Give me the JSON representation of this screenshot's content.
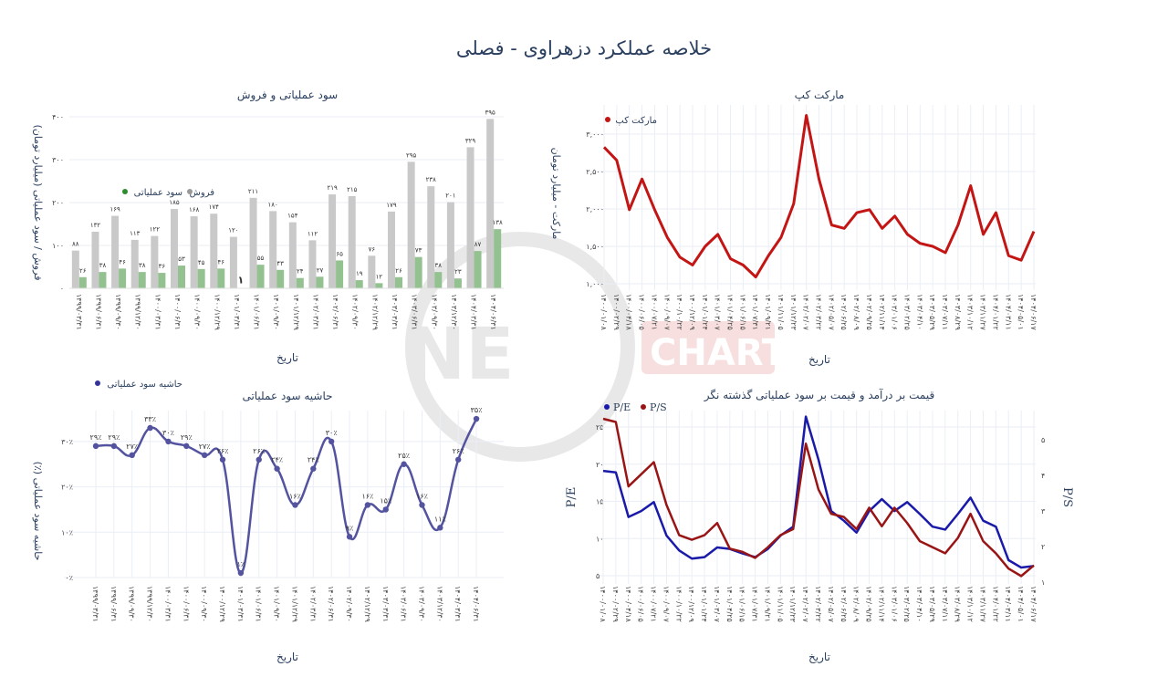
{
  "title": "خلاصه عملکرد دزهراوی - فصلی",
  "watermark": {
    "left": "NE",
    "right": "CHART.ir"
  },
  "colors": {
    "sales": "#c9c9c9",
    "op_profit": "#93c190",
    "margin": "#5353a0",
    "market_cap": "#c41515",
    "pe": "#1a1aaa",
    "ps": "#991515",
    "grid": "#eaeef6",
    "text": "#2a3f5f"
  },
  "chart_data": [
    {
      "type": "bar",
      "title": "سود عملیاتی و فروش",
      "xlabel": "تاریخ",
      "ylabel": "فروش / سود عملیاتی (میلیارد تومان)",
      "ylim": [
        0,
        400
      ],
      "yticks": [
        0,
        100,
        200,
        300,
        400
      ],
      "legend": "inside-left",
      "categories": [
        "۱۳۹۹/۰۳/۳۱",
        "۱۳۹۹/۰۶/۳۱",
        "۱۳۹۹/۰۹/۳۰",
        "۱۳۹۹/۱۲/۳۰",
        "۱۴۰۰/۰۳/۳۱",
        "۱۴۰۰/۰۶/۳۱",
        "۱۴۰۰/۰۹/۳۰",
        "۱۴۰۰/۱۲/۲۹",
        "۱۴۰۱/۰۳/۳۱",
        "۱۴۰۱/۰۶/۳۱",
        "۱۴۰۱/۰۹/۳۰",
        "۱۴۰۱/۱۲/۲۹",
        "۱۴۰۲/۰۳/۳۱",
        "۱۴۰۲/۰۶/۳۱",
        "۱۴۰۲/۰۹/۳۰",
        "۱۴۰۲/۱۲/۲۹",
        "۱۴۰۳/۰۳/۳۱",
        "۱۴۰۳/۰۶/۳۱",
        "۱۴۰۳/۰۹/۳۰",
        "۱۴۰۳/۱۲/۳۰",
        "۱۴۰۴/۰۳/۳۱",
        "۱۴۰۴/۰۶/۳۱"
      ],
      "series": [
        {
          "name": "فروش",
          "values": [
            88,
            132,
            169,
            113,
            122,
            185,
            168,
            174,
            120,
            211,
            180,
            154,
            112,
            219,
            215,
            76,
            179,
            295,
            238,
            201,
            329,
            395
          ]
        },
        {
          "name": "سود عملیاتی",
          "values": [
            26,
            38,
            46,
            38,
            36,
            53,
            45,
            46,
            1,
            55,
            43,
            24,
            27,
            65,
            19,
            12,
            26,
            73,
            38,
            23,
            87,
            138
          ]
        }
      ]
    },
    {
      "type": "line",
      "title": "حاشیه سود عملیاتی",
      "xlabel": "تاریخ",
      "ylabel": "(٪) حاشیه سود عملیاتی",
      "ylim": [
        0,
        35
      ],
      "yticks": [
        0,
        10,
        20,
        30
      ],
      "legend": "top-left",
      "categories": [
        "۱۳۹۹/۰۳/۳۱",
        "۱۳۹۹/۰۶/۳۱",
        "۱۳۹۹/۰۹/۳۰",
        "۱۳۹۹/۱۲/۳۰",
        "۱۴۰۰/۰۳/۳۱",
        "۱۴۰۰/۰۶/۳۱",
        "۱۴۰۰/۰۹/۳۰",
        "۱۴۰۰/۱۲/۲۹",
        "۱۴۰۱/۰۳/۳۱",
        "۱۴۰۱/۰۶/۳۱",
        "۱۴۰۱/۰۹/۳۰",
        "۱۴۰۱/۱۲/۲۹",
        "۱۴۰۲/۰۳/۳۱",
        "۱۴۰۲/۰۶/۳۱",
        "۱۴۰۲/۰۹/۳۰",
        "۱۴۰۲/۱۲/۲۹",
        "۱۴۰۳/۰۳/۳۱",
        "۱۴۰۳/۰۶/۳۱",
        "۱۴۰۳/۰۹/۳۰",
        "۱۴۰۳/۱۲/۳۰",
        "۱۴۰۴/۰۳/۳۱",
        "۱۴۰۴/۰۶/۳۱"
      ],
      "series": [
        {
          "name": "حاشیه سود عملیاتی",
          "values": [
            29,
            29,
            27,
            33,
            30,
            29,
            27,
            26,
            1,
            26,
            24,
            16,
            24,
            30,
            9,
            16,
            15,
            25,
            16,
            11,
            26,
            35
          ]
        }
      ]
    },
    {
      "type": "line",
      "title": "مارکت کپ",
      "xlabel": "تاریخ",
      "ylabel": "مارکت - میلیارد تومان",
      "ylim": [
        1000,
        3250
      ],
      "yticks": [
        1000,
        1500,
        2000,
        2500,
        3000
      ],
      "legend": "top-left",
      "x": [
        "۱۴۰۰/۰۱/۰۸",
        "۱۴۰۰/۰۲/۲۹",
        "۱۴۰۰/۰۴/۱۸",
        "۱۴۰۰/۰۶/۰۵",
        "۱۴۰۰/۰۷/۲۱",
        "۱۴۰۰/۰۹/۰۷",
        "۱۴۰۰/۱۰/۲۲",
        "۱۴۰۰/۱۲/۰۹",
        "۱۴۰۱/۰۱/۲۴",
        "۱۴۰۱/۰۳/۰۷",
        "۱۴۰۱/۰۴/۲۵",
        "۱۴۰۱/۰۶/۱۵",
        "۱۴۰۱/۰۷/۳۱",
        "۱۴۰۱/۰۹/۲۱",
        "۱۴۰۱/۱۱/۰۵",
        "۱۴۰۱/۱۲/۲۳",
        "۱۴۰۲/۰۲/۰۷",
        "۱۴۰۲/۰۳/۲۲",
        "۱۴۰۲/۰۵/۰۷",
        "۱۴۰۲/۰۶/۲۵",
        "۱۴۰۲/۰۸/۰۹",
        "۱۴۰۲/۰۹/۲۵",
        "۱۴۰۲/۱۱/۱۴",
        "۱۴۰۳/۰۱/۰۶",
        "۱۴۰۳/۰۲/۲۵",
        "۱۴۰۳/۰۴/۱۰",
        "۱۴۰۳/۰۵/۲۹",
        "۱۴۰۳/۰۷/۱۱",
        "۱۴۰۳/۰۸/۲۹",
        "۱۴۰۳/۱۰/۱۲",
        "۱۴۰۳/۱۱/۲۷",
        "۱۴۰۴/۰۱/۲۲",
        "۱۴۰۴/۰۳/۱۱",
        "۱۴۰۴/۰۵/۰۱",
        "۱۴۰۴/۰۶/۱۷"
      ],
      "series": [
        {
          "name": "مارکت کپ",
          "values": [
            2825,
            2650,
            1990,
            2400,
            1990,
            1620,
            1355,
            1250,
            1500,
            1660,
            1335,
            1250,
            1090,
            1375,
            1620,
            2070,
            3250,
            2400,
            1785,
            1740,
            1950,
            1990,
            1740,
            1905,
            1660,
            1540,
            1500,
            1415,
            1785,
            2310,
            1660,
            1950,
            1375,
            1315,
            1700
          ]
        }
      ]
    },
    {
      "type": "line",
      "title": "قیمت بر درآمد و قیمت بر سود عملیاتی گذشته نگر",
      "xlabel": "تاریخ",
      "ylabel": "P/E",
      "ylabel_right": "P/S",
      "ylim": [
        4,
        27
      ],
      "ylim_right": [
        0.9,
        5.7
      ],
      "yticks": [
        5,
        10,
        15,
        20,
        25
      ],
      "yticks_right": [
        1,
        2,
        3,
        4,
        5
      ],
      "legend": "top-left",
      "x": [
        "۱۴۰۰/۰۱/۰۸",
        "۱۴۰۰/۰۲/۲۹",
        "۱۴۰۰/۰۴/۱۸",
        "۱۴۰۰/۰۶/۰۵",
        "۱۴۰۰/۰۷/۲۱",
        "۱۴۰۰/۰۹/۰۷",
        "۱۴۰۰/۱۰/۲۲",
        "۱۴۰۰/۱۲/۰۹",
        "۱۴۰۱/۰۱/۲۴",
        "۱۴۰۱/۰۳/۰۷",
        "۱۴۰۱/۰۴/۲۵",
        "۱۴۰۱/۰۶/۱۵",
        "۱۴۰۱/۰۷/۳۱",
        "۱۴۰۱/۰۹/۲۱",
        "۱۴۰۱/۱۱/۰۵",
        "۱۴۰۱/۱۲/۲۳",
        "۱۴۰۲/۰۲/۰۷",
        "۱۴۰۲/۰۳/۲۲",
        "۱۴۰۲/۰۵/۰۷",
        "۱۴۰۲/۰۶/۲۵",
        "۱۴۰۲/۰۸/۰۹",
        "۱۴۰۲/۰۹/۲۵",
        "۱۴۰۲/۱۱/۱۴",
        "۱۴۰۳/۰۱/۰۶",
        "۱۴۰۳/۰۲/۲۵",
        "۱۴۰۳/۰۴/۱۰",
        "۱۴۰۳/۰۵/۲۹",
        "۱۴۰۳/۰۷/۱۱",
        "۱۴۰۳/۰۸/۲۹",
        "۱۴۰۳/۱۰/۱۲",
        "۱۴۰۳/۱۱/۲۷",
        "۱۴۰۴/۰۱/۲۲",
        "۱۴۰۴/۰۳/۱۱",
        "۱۴۰۴/۰۵/۰۱",
        "۱۴۰۴/۰۶/۱۷"
      ],
      "series": [
        {
          "name": "P/E",
          "axis": "left",
          "values": [
            19.1,
            18.9,
            12.9,
            13.7,
            14.9,
            10.4,
            8.4,
            7.3,
            7.5,
            8.8,
            8.6,
            8.0,
            7.5,
            8.6,
            10.4,
            11.6,
            26.4,
            20.6,
            13.7,
            12.4,
            10.8,
            13.7,
            15.3,
            13.7,
            14.9,
            13.3,
            11.6,
            11.2,
            13.3,
            15.5,
            12.4,
            11.6,
            7.1,
            6.1,
            6.3
          ]
        },
        {
          "name": "P/S",
          "axis": "right",
          "values": [
            5.59,
            5.5,
            3.69,
            4.03,
            4.37,
            3.17,
            2.32,
            2.19,
            2.32,
            2.66,
            1.94,
            1.85,
            1.68,
            1.98,
            2.32,
            2.49,
            4.89,
            3.6,
            2.92,
            2.83,
            2.49,
            3.09,
            2.57,
            3.09,
            2.66,
            2.15,
            1.98,
            1.81,
            2.24,
            2.92,
            2.15,
            1.81,
            1.38,
            1.17,
            1.47
          ]
        }
      ]
    }
  ]
}
